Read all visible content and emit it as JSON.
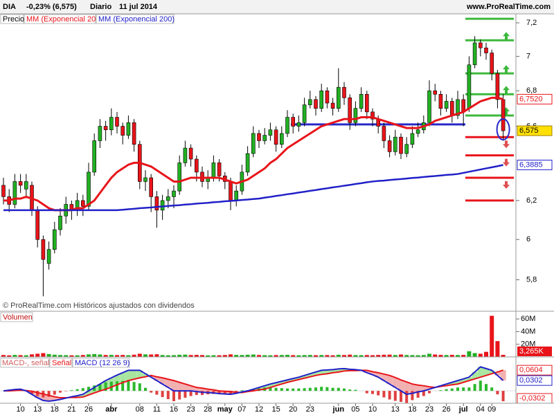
{
  "header": {
    "symbol": "DIA",
    "change": "-0,23% (6,575)",
    "period": "Diario",
    "date": "11 jul 2014",
    "site": "www.ProRealTime.com"
  },
  "chart_data": [
    {
      "type": "candlestick",
      "title": "Precio",
      "footnote": "© ProRealTime.com  Históricos ajustados con dividendos",
      "log_scale": true,
      "categories": [
        null,
        null,
        null,
        "10",
        null,
        null,
        "13",
        null,
        null,
        "18",
        null,
        null,
        "21",
        null,
        null,
        "26",
        null,
        null,
        null,
        "abr",
        null,
        null,
        null,
        null,
        "08",
        null,
        null,
        "11",
        null,
        null,
        "16",
        null,
        null,
        "23",
        null,
        null,
        "28",
        null,
        null,
        "may",
        null,
        null,
        "07",
        null,
        null,
        "12",
        null,
        null,
        "15",
        null,
        null,
        "20",
        null,
        null,
        "23",
        null,
        null,
        null,
        null,
        "jun",
        null,
        null,
        "05",
        null,
        null,
        "10",
        null,
        null,
        null,
        "13",
        null,
        null,
        "18",
        null,
        null,
        "23",
        null,
        null,
        "26",
        null,
        null,
        "jul",
        null,
        null,
        "04",
        null,
        "09",
        null,
        null
      ],
      "ohlc": [
        [
          6.28,
          6.32,
          6.18,
          6.22
        ],
        [
          6.22,
          6.26,
          6.14,
          6.18
        ],
        [
          6.18,
          6.34,
          6.16,
          6.3
        ],
        [
          6.3,
          6.34,
          6.24,
          6.28
        ],
        [
          6.26,
          6.34,
          6.22,
          6.3
        ],
        [
          6.28,
          6.3,
          6.12,
          6.15
        ],
        [
          6.15,
          6.17,
          5.96,
          6.0
        ],
        [
          6.0,
          6.02,
          5.72,
          5.9
        ],
        [
          5.88,
          5.99,
          5.85,
          5.95
        ],
        [
          5.95,
          6.09,
          5.93,
          6.05
        ],
        [
          6.05,
          6.16,
          6.02,
          6.12
        ],
        [
          6.12,
          6.22,
          6.08,
          6.18
        ],
        [
          6.18,
          6.2,
          6.1,
          6.15
        ],
        [
          6.15,
          6.24,
          6.12,
          6.2
        ],
        [
          6.2,
          6.23,
          6.12,
          6.17
        ],
        [
          6.17,
          6.4,
          6.15,
          6.35
        ],
        [
          6.35,
          6.56,
          6.33,
          6.52
        ],
        [
          6.52,
          6.64,
          6.48,
          6.6
        ],
        [
          6.6,
          6.63,
          6.52,
          6.58
        ],
        [
          6.58,
          6.7,
          6.55,
          6.65
        ],
        [
          6.65,
          6.68,
          6.56,
          6.6
        ],
        [
          6.6,
          6.62,
          6.5,
          6.55
        ],
        [
          6.55,
          6.66,
          6.53,
          6.62
        ],
        [
          6.62,
          6.64,
          6.46,
          6.5
        ],
        [
          6.5,
          6.52,
          6.26,
          6.3
        ],
        [
          6.3,
          6.36,
          6.25,
          6.32
        ],
        [
          6.32,
          6.34,
          6.14,
          6.22
        ],
        [
          6.22,
          6.25,
          6.06,
          6.15
        ],
        [
          6.15,
          6.23,
          6.1,
          6.2
        ],
        [
          6.2,
          6.26,
          6.16,
          6.22
        ],
        [
          6.22,
          6.28,
          6.16,
          6.25
        ],
        [
          6.25,
          6.44,
          6.23,
          6.4
        ],
        [
          6.4,
          6.52,
          6.38,
          6.48
        ],
        [
          6.48,
          6.5,
          6.38,
          6.42
        ],
        [
          6.42,
          6.44,
          6.3,
          6.35
        ],
        [
          6.35,
          6.38,
          6.27,
          6.3
        ],
        [
          6.3,
          6.36,
          6.26,
          6.32
        ],
        [
          6.32,
          6.44,
          6.3,
          6.4
        ],
        [
          6.4,
          6.42,
          6.3,
          6.33
        ],
        [
          6.33,
          6.35,
          6.26,
          6.3
        ],
        [
          6.3,
          6.32,
          6.15,
          6.2
        ],
        [
          6.2,
          6.28,
          6.17,
          6.25
        ],
        [
          6.25,
          6.39,
          6.23,
          6.35
        ],
        [
          6.35,
          6.49,
          6.33,
          6.45
        ],
        [
          6.45,
          6.6,
          6.43,
          6.56
        ],
        [
          6.56,
          6.58,
          6.48,
          6.52
        ],
        [
          6.52,
          6.59,
          6.5,
          6.55
        ],
        [
          6.55,
          6.62,
          6.52,
          6.58
        ],
        [
          6.58,
          6.6,
          6.46,
          6.5
        ],
        [
          6.5,
          6.6,
          6.48,
          6.56
        ],
        [
          6.56,
          6.69,
          6.54,
          6.65
        ],
        [
          6.65,
          6.67,
          6.56,
          6.6
        ],
        [
          6.6,
          6.66,
          6.57,
          6.62
        ],
        [
          6.62,
          6.76,
          6.6,
          6.72
        ],
        [
          6.72,
          6.8,
          6.7,
          6.75
        ],
        [
          6.75,
          6.77,
          6.66,
          6.7
        ],
        [
          6.7,
          6.84,
          6.68,
          6.8
        ],
        [
          6.8,
          6.82,
          6.7,
          6.73
        ],
        [
          6.73,
          6.76,
          6.66,
          6.7
        ],
        [
          6.7,
          6.93,
          6.68,
          6.82
        ],
        [
          6.82,
          6.85,
          6.72,
          6.76
        ],
        [
          6.76,
          6.78,
          6.58,
          6.62
        ],
        [
          6.62,
          6.74,
          6.6,
          6.7
        ],
        [
          6.7,
          6.82,
          6.68,
          6.78
        ],
        [
          6.78,
          6.8,
          6.64,
          6.68
        ],
        [
          6.68,
          6.7,
          6.6,
          6.64
        ],
        [
          6.64,
          6.66,
          6.56,
          6.6
        ],
        [
          6.6,
          6.62,
          6.48,
          6.52
        ],
        [
          6.52,
          6.55,
          6.43,
          6.46
        ],
        [
          6.46,
          6.58,
          6.44,
          6.54
        ],
        [
          6.54,
          6.56,
          6.42,
          6.45
        ],
        [
          6.45,
          6.54,
          6.43,
          6.5
        ],
        [
          6.5,
          6.6,
          6.48,
          6.56
        ],
        [
          6.56,
          6.62,
          6.54,
          6.58
        ],
        [
          6.58,
          6.66,
          6.56,
          6.62
        ],
        [
          6.62,
          6.86,
          6.6,
          6.8
        ],
        [
          6.8,
          6.84,
          6.74,
          6.78
        ],
        [
          6.78,
          6.8,
          6.66,
          6.7
        ],
        [
          6.7,
          6.78,
          6.68,
          6.74
        ],
        [
          6.74,
          6.76,
          6.62,
          6.66
        ],
        [
          6.66,
          6.8,
          6.64,
          6.75
        ],
        [
          6.75,
          6.78,
          6.6,
          6.68
        ],
        [
          6.7,
          7.0,
          6.68,
          6.95
        ],
        [
          6.95,
          7.12,
          6.93,
          7.08
        ],
        [
          7.08,
          7.1,
          7.0,
          7.05
        ],
        [
          7.05,
          7.08,
          6.98,
          7.02
        ],
        [
          7.02,
          7.04,
          6.86,
          6.9
        ],
        [
          6.9,
          6.92,
          6.7,
          6.75
        ],
        [
          6.75,
          6.78,
          6.52,
          6.575
        ]
      ],
      "colors": {
        "up": "#22b022",
        "down": "#e8141a"
      },
      "ylim": [
        5.655,
        7.276
      ],
      "yticks": [
        {
          "value": 7.2,
          "label": "7,2"
        },
        7,
        {
          "value": 6.8,
          "label": "6,8"
        },
        {
          "value": 6.6,
          "label": "6,6"
        },
        {
          "value": 6.2,
          "label": "6,2"
        },
        6,
        {
          "value": 5.8,
          "label": "5,8"
        }
      ],
      "series": [
        {
          "name": "MM (Exponencial 20)",
          "color": "#e8141a",
          "last_label": "6,7520",
          "values": [
            6.2,
            6.2,
            6.21,
            6.21,
            6.22,
            6.21,
            6.2,
            6.18,
            6.16,
            6.15,
            6.15,
            6.15,
            6.15,
            6.16,
            6.16,
            6.18,
            6.2,
            6.24,
            6.28,
            6.32,
            6.35,
            6.37,
            6.39,
            6.4,
            6.4,
            6.39,
            6.38,
            6.36,
            6.34,
            6.32,
            6.3,
            6.3,
            6.31,
            6.32,
            6.32,
            6.32,
            6.32,
            6.32,
            6.32,
            6.31,
            6.3,
            6.29,
            6.3,
            6.31,
            6.33,
            6.35,
            6.37,
            6.4,
            6.42,
            6.45,
            6.48,
            6.5,
            6.52,
            6.54,
            6.56,
            6.58,
            6.6,
            6.61,
            6.62,
            6.63,
            6.64,
            6.64,
            6.64,
            6.65,
            6.65,
            6.65,
            6.64,
            6.63,
            6.62,
            6.61,
            6.6,
            6.59,
            6.59,
            6.59,
            6.6,
            6.61,
            6.63,
            6.64,
            6.65,
            6.66,
            6.67,
            6.68,
            6.7,
            6.72,
            6.74,
            6.75,
            6.76,
            6.76,
            6.752
          ]
        },
        {
          "name": "MM (Exponencial 200)",
          "color": "#2020c8",
          "last_label": "6,3885",
          "values": [
            6.15,
            6.15,
            6.15,
            6.15,
            6.15,
            6.15,
            6.15,
            6.15,
            6.15,
            6.15,
            6.15,
            6.15,
            6.15,
            6.15,
            6.15,
            6.15,
            6.15,
            6.15,
            6.15,
            6.15,
            6.15,
            6.152,
            6.155,
            6.157,
            6.16,
            6.162,
            6.164,
            6.167,
            6.169,
            6.172,
            6.174,
            6.176,
            6.179,
            6.181,
            6.184,
            6.186,
            6.188,
            6.191,
            6.193,
            6.196,
            6.198,
            6.2,
            6.203,
            6.205,
            6.208,
            6.21,
            6.215,
            6.219,
            6.224,
            6.228,
            6.233,
            6.237,
            6.242,
            6.246,
            6.251,
            6.255,
            6.26,
            6.264,
            6.269,
            6.273,
            6.278,
            6.282,
            6.287,
            6.291,
            6.296,
            6.3,
            6.303,
            6.305,
            6.308,
            6.311,
            6.313,
            6.316,
            6.319,
            6.321,
            6.324,
            6.327,
            6.329,
            6.332,
            6.335,
            6.337,
            6.34,
            6.346,
            6.352,
            6.358,
            6.364,
            6.37,
            6.376,
            6.382,
            6.3885
          ]
        }
      ],
      "last_close": {
        "value": 6.575,
        "label": "6,575"
      },
      "levels": {
        "up": [
          7.225,
          7.095,
          6.9,
          6.78,
          6.66
        ],
        "pivot": 6.61,
        "down": [
          6.54,
          6.44,
          6.32,
          6.2
        ]
      }
    },
    {
      "type": "bar",
      "title": "Volumen",
      "ylim": [
        0,
        70
      ],
      "yticks": [
        {
          "value": 60,
          "label": "60M"
        },
        {
          "value": 40,
          "label": "40M"
        },
        {
          "value": 20,
          "label": "20M"
        }
      ],
      "last_label": "3,265K",
      "values": [
        3,
        2.5,
        3.2,
        2.8,
        2.6,
        4,
        5,
        6,
        4.5,
        3.5,
        3,
        2.8,
        2.5,
        2.6,
        3,
        4,
        4.5,
        3.8,
        3,
        3.2,
        2.9,
        3.1,
        2.7,
        3.5,
        5,
        4,
        3.8,
        4.2,
        3,
        2.6,
        2.8,
        3.4,
        3.6,
        3,
        3.2,
        2.9,
        2.5,
        2.7,
        2.6,
        3,
        4,
        3.2,
        3,
        3.4,
        3.8,
        3,
        2.8,
        2.6,
        2.9,
        3,
        3.3,
        2.8,
        2.6,
        2.9,
        3.1,
        2.7,
        3,
        2.9,
        2.6,
        3.4,
        3,
        3.6,
        2.9,
        2.8,
        3,
        2.7,
        3.1,
        3.4,
        3.6,
        3,
        3.8,
        3,
        2.9,
        2.7,
        3,
        5,
        3.8,
        3.2,
        3,
        3.3,
        3,
        3.2,
        9,
        6,
        5,
        8,
        65,
        25,
        3.265
      ]
    },
    {
      "type": "macd",
      "histogram_name": "MACD-, señal",
      "histogram_label": {
        "value": -0.0302,
        "label": "-0,0302"
      },
      "ylim": [
        -0.036,
        0.095
      ],
      "series": [
        {
          "name": "Señal",
          "color": "#e8141a",
          "last_label": "0,0604",
          "values": [
            0,
            0,
            0.001,
            0.002,
            0.001,
            -0.001,
            -0.005,
            -0.009,
            -0.013,
            -0.017,
            -0.02,
            -0.02,
            -0.019,
            -0.019,
            -0.018,
            -0.012,
            -0.006,
            0,
            0.005,
            0.011,
            0.018,
            0.024,
            0.03,
            0.034,
            0.038,
            0.041,
            0.045,
            0.041,
            0.038,
            0.034,
            0.03,
            0.025,
            0.02,
            0.015,
            0.01,
            0.008,
            0.005,
            0.003,
            0,
            -0.001,
            -0.002,
            -0.004,
            -0.005,
            -0.002,
            0,
            0.003,
            0.005,
            0.01,
            0.015,
            0.02,
            0.025,
            0.029,
            0.033,
            0.037,
            0.041,
            0.045,
            0.048,
            0.05,
            0.053,
            0.055,
            0.058,
            0.059,
            0.059,
            0.06,
            0.06,
            0.056,
            0.053,
            0.049,
            0.045,
            0.039,
            0.032,
            0.026,
            0.02,
            0.017,
            0.015,
            0.012,
            0.01,
            0.013,
            0.015,
            0.018,
            0.02,
            0.025,
            0.03,
            0.035,
            0.04,
            0.045,
            0.05,
            0.055,
            0.0604
          ]
        },
        {
          "name": "MACD (12 26 9)",
          "color": "#2020c8",
          "last_label": "0,0302",
          "values": [
            0,
            0.002,
            0.004,
            0.005,
            0,
            -0.01,
            -0.02,
            -0.028,
            -0.03,
            -0.028,
            -0.025,
            -0.021,
            -0.017,
            -0.014,
            -0.01,
            0,
            0.01,
            0.02,
            0.03,
            0.038,
            0.046,
            0.053,
            0.06,
            0.06,
            0.06,
            0.05,
            0.04,
            0.03,
            0.02,
            0.01,
            0,
            0,
            0,
            0,
            -0.002,
            -0.004,
            -0.005,
            -0.006,
            -0.008,
            -0.009,
            -0.01,
            -0.007,
            -0.003,
            0,
            0.005,
            0.01,
            0.015,
            0.02,
            0.024,
            0.028,
            0.032,
            0.036,
            0.04,
            0.045,
            0.05,
            0.055,
            0.06,
            0.061,
            0.062,
            0.064,
            0.065,
            0.063,
            0.062,
            0.06,
            0.053,
            0.047,
            0.04,
            0.03,
            0.02,
            0.01,
            0,
            -0.01,
            -0.007,
            -0.003,
            0,
            0.005,
            0.01,
            0.015,
            0.02,
            0.025,
            0.03,
            0.035,
            0.04,
            0.055,
            0.07,
            0.065,
            0.06,
            0.045,
            0.0302
          ]
        }
      ]
    }
  ]
}
